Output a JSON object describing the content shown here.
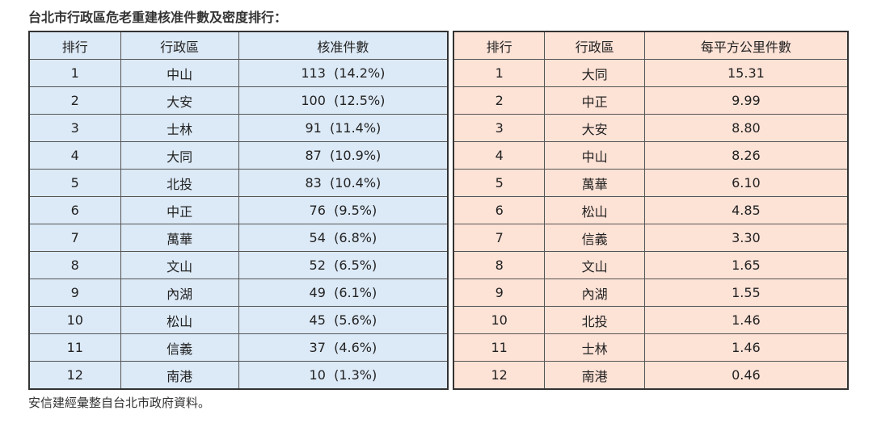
{
  "title": "台北市行政區危老重建核准件數及密度排行：",
  "left_table": {
    "headers": [
      "排行",
      "行政區",
      "核准件數"
    ],
    "rows": [
      [
        "1",
        "中山",
        "113  (14.2%)"
      ],
      [
        "2",
        "大安",
        "100  (12.5%)"
      ],
      [
        "3",
        "士林",
        "91  (11.4%)"
      ],
      [
        "4",
        "大同",
        "87  (10.9%)"
      ],
      [
        "5",
        "北投",
        "83  (10.4%)"
      ],
      [
        "6",
        "中正",
        "76  (9.5%)"
      ],
      [
        "7",
        "萬華",
        "54  (6.8%)"
      ],
      [
        "8",
        "文山",
        "52  (6.5%)"
      ],
      [
        "9",
        "內湖",
        "49  (6.1%)"
      ],
      [
        "10",
        "松山",
        "45  (5.6%)"
      ],
      [
        "11",
        "信義",
        "37  (4.6%)"
      ],
      [
        "12",
        "南港",
        "10  (1.3%)"
      ]
    ]
  },
  "right_table": {
    "headers": [
      "排行",
      "行政區",
      "每平方公里件數"
    ],
    "rows": [
      [
        "1",
        "大同",
        "15.31"
      ],
      [
        "2",
        "中正",
        "9.99"
      ],
      [
        "3",
        "大安",
        "8.80"
      ],
      [
        "4",
        "中山",
        "8.26"
      ],
      [
        "5",
        "萬華",
        "6.10"
      ],
      [
        "6",
        "松山",
        "4.85"
      ],
      [
        "7",
        "信義",
        "3.30"
      ],
      [
        "8",
        "文山",
        "1.65"
      ],
      [
        "9",
        "內湖",
        "1.55"
      ],
      [
        "10",
        "北投",
        "1.46"
      ],
      [
        "11",
        "士林",
        "1.46"
      ],
      [
        "12",
        "南港",
        "0.46"
      ]
    ]
  },
  "source": "安信建經彙整自台北市政府資料。"
}
